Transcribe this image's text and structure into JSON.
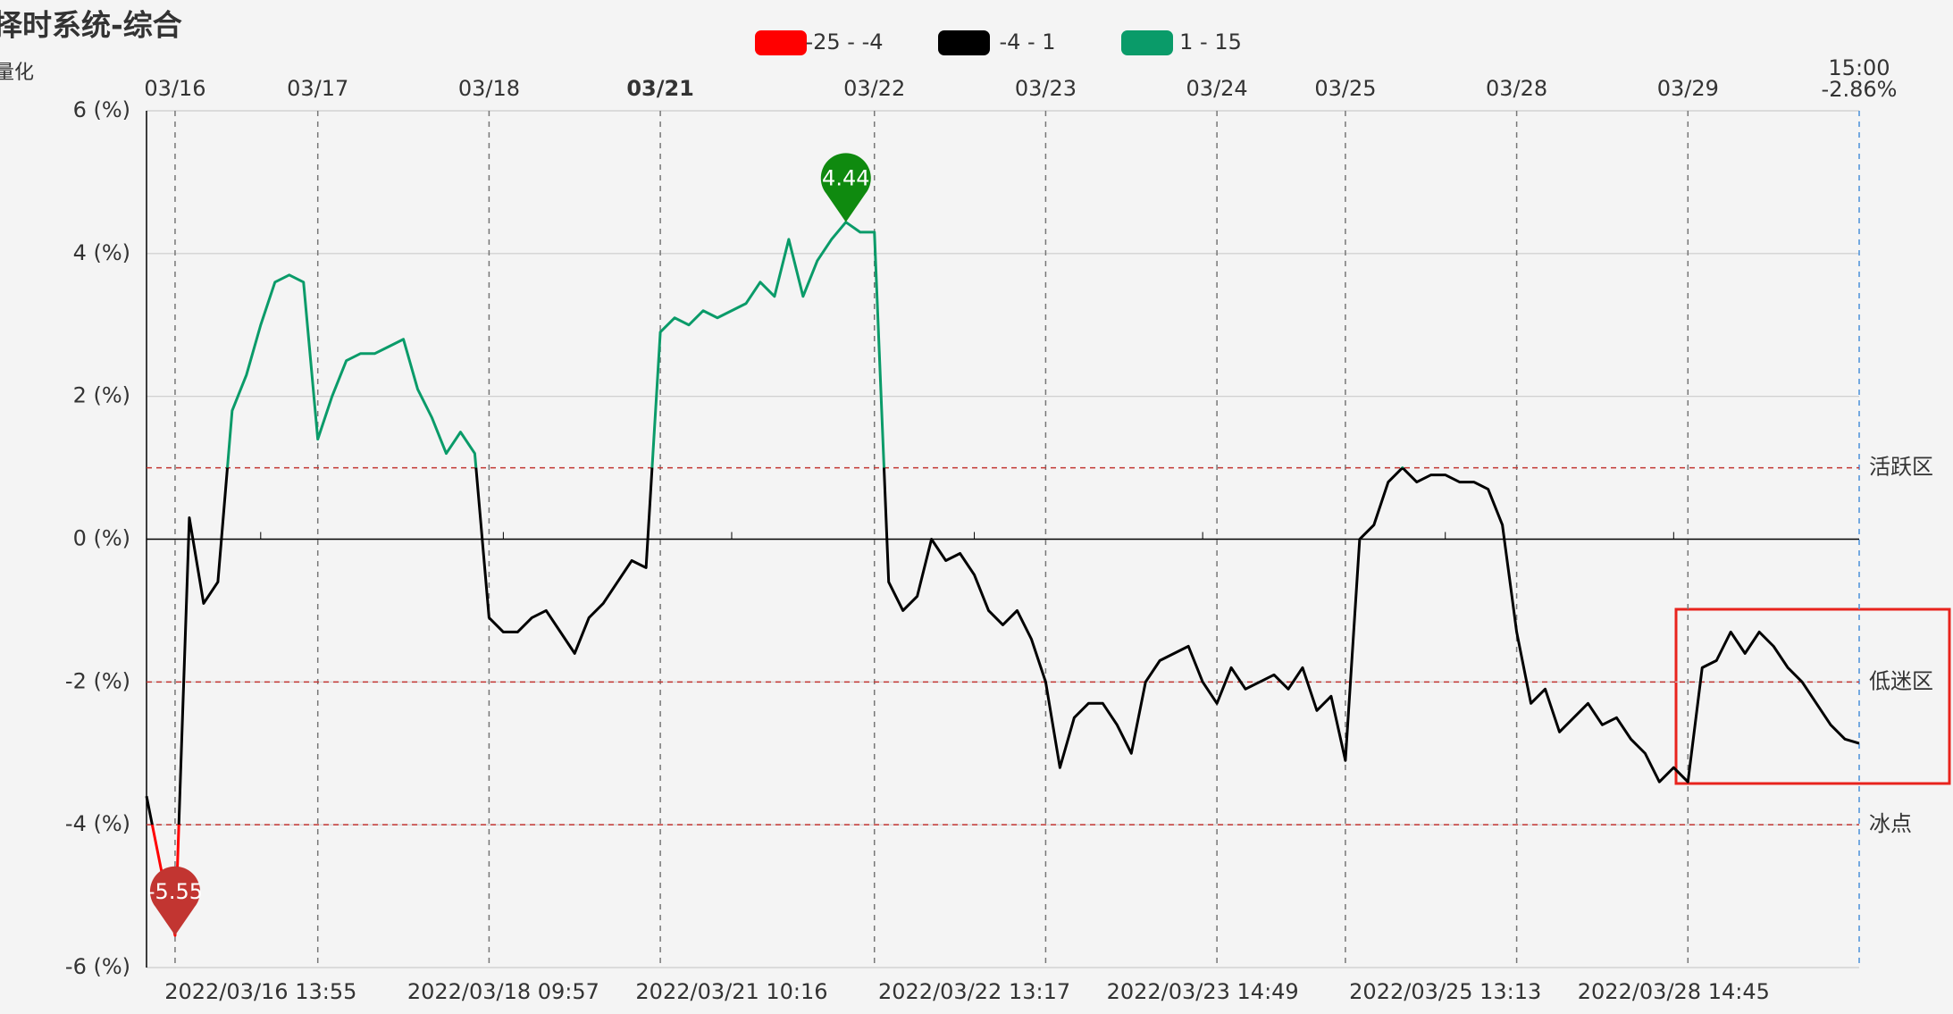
{
  "chart_data": {
    "type": "line",
    "title": "择时系统-综合",
    "subtitle": "量化",
    "categories": [
      null,
      null,
      "03/16",
      null,
      null,
      null,
      null,
      null,
      null,
      null,
      null,
      null,
      "03/17",
      null,
      null,
      null,
      null,
      null,
      null,
      null,
      null,
      null,
      null,
      null,
      "03/18",
      null,
      null,
      null,
      null,
      null,
      null,
      null,
      null,
      null,
      null,
      null,
      "03/21",
      null,
      null,
      null,
      null,
      null,
      null,
      null,
      null,
      null,
      null,
      null,
      null,
      null,
      null,
      "03/22",
      null,
      null,
      null,
      null,
      null,
      null,
      null,
      null,
      null,
      null,
      null,
      "03/23",
      null,
      null,
      null,
      null,
      null,
      null,
      null,
      null,
      null,
      null,
      null,
      "03/24",
      null,
      null,
      null,
      null,
      null,
      null,
      null,
      null,
      "03/25",
      null,
      null,
      null,
      null,
      null,
      null,
      null,
      null,
      null,
      null,
      null,
      "03/28",
      null,
      null,
      null,
      null,
      null,
      null,
      null,
      null,
      null,
      null,
      null,
      "03/29",
      null,
      null,
      null,
      null,
      null,
      null,
      null,
      null,
      null,
      null,
      null,
      "15:00"
    ],
    "bottom_labels": [
      null,
      null,
      null,
      null,
      null,
      null,
      null,
      null,
      "2022/03/16 13:55",
      null,
      null,
      null,
      null,
      null,
      null,
      null,
      null,
      null,
      null,
      null,
      null,
      null,
      null,
      null,
      null,
      "2022/03/18 09:57",
      null,
      null,
      null,
      null,
      null,
      null,
      null,
      null,
      null,
      null,
      null,
      null,
      null,
      null,
      null,
      "2022/03/21 10:16",
      null,
      null,
      null,
      null,
      null,
      null,
      null,
      null,
      null,
      null,
      null,
      null,
      null,
      null,
      null,
      null,
      "2022/03/22 13:17",
      null,
      null,
      null,
      null,
      null,
      null,
      null,
      null,
      null,
      null,
      null,
      null,
      null,
      null,
      null,
      "2022/03/23 14:49",
      null,
      null,
      null,
      null,
      null,
      null,
      null,
      null,
      null,
      null,
      null,
      null,
      null,
      null,
      null,
      null,
      "2022/03/25 13:13",
      null,
      null,
      null,
      null,
      null,
      null,
      null,
      null,
      null,
      null,
      null,
      null,
      null,
      null,
      null,
      "2022/03/28 14:45",
      null,
      null,
      null,
      null,
      null,
      null,
      null,
      null,
      null,
      null,
      null,
      null,
      null
    ],
    "series": [
      {
        "values": [
          -3.6,
          -4.6,
          -5.55,
          0.3,
          -0.9,
          -0.6,
          1.8,
          2.3,
          3.0,
          3.6,
          3.7,
          3.6,
          1.4,
          2.0,
          2.5,
          2.6,
          2.6,
          2.7,
          2.8,
          2.1,
          1.7,
          1.2,
          1.5,
          1.2,
          -1.1,
          -1.3,
          -1.3,
          -1.1,
          -1.0,
          -1.3,
          -1.6,
          -1.1,
          -0.9,
          -0.6,
          -0.3,
          -0.4,
          2.9,
          3.1,
          3.0,
          3.2,
          3.1,
          3.2,
          3.3,
          3.6,
          3.4,
          4.2,
          3.4,
          3.9,
          4.2,
          4.44,
          4.3,
          4.3,
          -0.6,
          -1.0,
          -0.8,
          0.0,
          -0.3,
          -0.2,
          -0.5,
          -1.0,
          -1.2,
          -1.0,
          -1.4,
          -2.0,
          -3.2,
          -2.5,
          -2.3,
          -2.3,
          -2.6,
          -3.0,
          -2.0,
          -1.7,
          -1.6,
          -1.5,
          -2.0,
          -2.3,
          -1.8,
          -2.1,
          -2.0,
          -1.9,
          -2.1,
          -1.8,
          -2.4,
          -2.2,
          -3.1,
          0.0,
          0.2,
          0.8,
          1.0,
          0.8,
          0.9,
          0.9,
          0.8,
          0.8,
          0.7,
          0.2,
          -1.3,
          -2.3,
          -2.1,
          -2.7,
          -2.5,
          -2.3,
          -2.6,
          -2.5,
          -2.8,
          -3.0,
          -3.4,
          -3.2,
          -3.4,
          -1.8,
          -1.7,
          -1.3,
          -1.6,
          -1.3,
          -1.5,
          -1.8,
          -2.0,
          -2.3,
          -2.6,
          -2.8,
          -2.86
        ]
      }
    ],
    "end_label": "-2.86%",
    "pieces": [
      {
        "min": -25,
        "max": -4,
        "label": "-25 - -4",
        "color": "#ff0000"
      },
      {
        "min": -4,
        "max": 1,
        "label": "-4 - 1",
        "color": "#000000"
      },
      {
        "min": 1,
        "max": 15,
        "label": "1 - 15",
        "color": "#0a9b69"
      }
    ],
    "ylim": [
      -6,
      6
    ],
    "yticks": [
      {
        "value": -6,
        "label": "-6 (%)"
      },
      {
        "value": -4,
        "label": "-4 (%)"
      },
      {
        "value": -2,
        "label": "-2 (%)"
      },
      {
        "value": 0,
        "label": "0 (%)"
      },
      {
        "value": 2,
        "label": "2 (%)"
      },
      {
        "value": 4,
        "label": "4 (%)"
      },
      {
        "value": 6,
        "label": "6 (%)"
      }
    ],
    "grid": true,
    "reference_lines": [
      {
        "value": 1,
        "label": "活跃区"
      },
      {
        "value": -2,
        "label": "低迷区"
      },
      {
        "value": -4,
        "label": "冰点"
      }
    ],
    "max_pin_color": "#0f8a0f",
    "min_pin_color": "#c23531"
  }
}
